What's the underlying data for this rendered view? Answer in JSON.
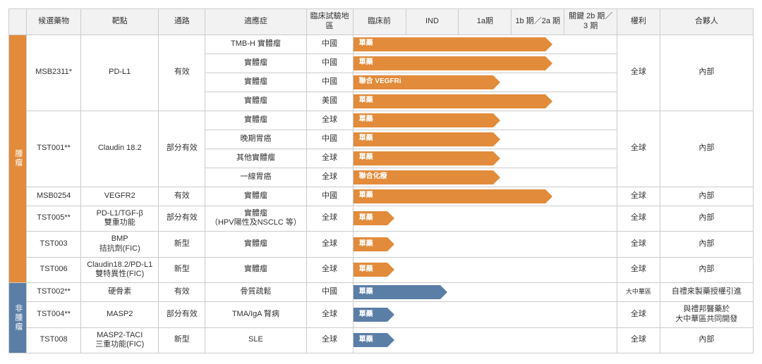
{
  "columns": {
    "category": "",
    "drug": "候選藥物",
    "target": "靶點",
    "pathway": "通路",
    "indication": "適應症",
    "region": "臨床試驗地區",
    "phases": [
      "臨床前",
      "IND",
      "1a期",
      "1b 期／2a 期",
      "關鍵 2b 期／3 期"
    ],
    "rights": "權利",
    "partner": "合夥人"
  },
  "phase_col_width_pct": 20,
  "sections": [
    {
      "key": "tumor",
      "label": "腫瘤",
      "bar_color": "#e28b3a",
      "cat_bg": "#e28b3a",
      "groups": [
        {
          "drug": "MSB2311*",
          "target": "PD-L1",
          "pathway": "有效",
          "rights": "全球",
          "partner": "內部",
          "rows": [
            {
              "indication": "TMB-H 實體瘤",
              "region": "中國",
              "label": "單藥",
              "progress_phase_idx": 4
            },
            {
              "indication": "實體瘤",
              "region": "中國",
              "label": "單藥",
              "progress_phase_idx": 4
            },
            {
              "indication": "實體瘤",
              "region": "中國",
              "label": "聯合 VEGFRi",
              "progress_phase_idx": 3
            },
            {
              "indication": "實體瘤",
              "region": "美國",
              "label": "單藥",
              "progress_phase_idx": 4
            }
          ]
        },
        {
          "drug": "TST001**",
          "target": "Claudin 18.2",
          "pathway": "部分有效",
          "rights": "全球",
          "partner": "內部",
          "rows": [
            {
              "indication": "實體瘤",
              "region": "全球",
              "label": "單藥",
              "progress_phase_idx": 3
            },
            {
              "indication": "晚期胃癌",
              "region": "中國",
              "label": "單藥",
              "progress_phase_idx": 3
            },
            {
              "indication": "其他實體瘤",
              "region": "全球",
              "label": "單藥",
              "progress_phase_idx": 3
            },
            {
              "indication": "一線胃癌",
              "region": "全球",
              "label": "聯合化療",
              "progress_phase_idx": 3
            }
          ]
        },
        {
          "drug": "MSB0254",
          "target": "VEGFR2",
          "pathway": "有效",
          "rights": "全球",
          "partner": "內部",
          "rows": [
            {
              "indication": "實體瘤",
              "region": "中國",
              "label": "單藥",
              "progress_phase_idx": 4
            }
          ]
        },
        {
          "drug": "TST005**",
          "target": "PD-L1/TGF-β\n雙重功能",
          "pathway": "部分有效",
          "rights": "全球",
          "partner": "內部",
          "rows": [
            {
              "indication": "實體瘤\n（HPV陽性及NSCLC 等）",
              "region": "全球",
              "label": "單藥",
              "progress_phase_idx": 1
            }
          ]
        },
        {
          "drug": "TST003",
          "target": "BMP\n拮抗劑(FIC)",
          "pathway": "新型",
          "rights": "全球",
          "partner": "內部",
          "rows": [
            {
              "indication": "實體瘤",
              "region": "全球",
              "label": "單藥",
              "progress_phase_idx": 1
            }
          ]
        },
        {
          "drug": "TST006",
          "target": "Claudin18.2/PD-L1\n雙特異性(FIC)",
          "pathway": "新型",
          "rights": "全球",
          "partner": "內部",
          "rows": [
            {
              "indication": "實體瘤",
              "region": "全球",
              "label": "單藥",
              "progress_phase_idx": 1
            }
          ]
        }
      ]
    },
    {
      "key": "nontumor",
      "label": "非腫瘤",
      "bar_color": "#5b7ea6",
      "cat_bg": "#5b7ea6",
      "groups": [
        {
          "drug": "TST002**",
          "target": "硬骨素",
          "pathway": "有效",
          "rights": "大中華區",
          "partner": "自禮來製藥授權引進",
          "rows": [
            {
              "indication": "骨質疏鬆",
              "region": "中國",
              "label": "單藥",
              "progress_phase_idx": 2
            }
          ]
        },
        {
          "drug": "TST004**",
          "target": "MASP2",
          "pathway": "部分有效",
          "rights": "全球",
          "partner": "與禮邦醫藥於\n大中華區共同開發",
          "rows": [
            {
              "indication": "TMA/IgA 腎病",
              "region": "全球",
              "label": "單藥",
              "progress_phase_idx": 1
            }
          ]
        },
        {
          "drug": "TST008",
          "target": "MASP2-TACI\n三重功能(FIC)",
          "pathway": "新型",
          "rights": "全球",
          "partner": "內部",
          "rows": [
            {
              "indication": "SLE",
              "region": "全球",
              "label": "單藥",
              "progress_phase_idx": 1
            }
          ]
        }
      ]
    }
  ]
}
